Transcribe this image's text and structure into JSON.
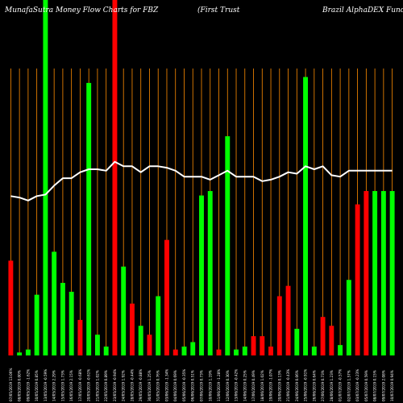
{
  "chart_data": {
    "type": "bar",
    "title_parts": [
      "MunafaSutra  Money Flow  Charts for FBZ",
      "(First Trust",
      "Brazil AlphaDEX  Fund)"
    ],
    "xlabel": "",
    "ylabel": "",
    "grid": "vertical",
    "colors": {
      "background": "#000000",
      "up": "#00ff00",
      "down": "#ff0000",
      "grid": "#ff8c00",
      "line": "#ffffff"
    },
    "categories": [
      "07/05/2019 13.06%",
      "08/05/2019 0.00%",
      "09/05/2019 -1.62%",
      "10/05/2019 0.85%",
      "13/05/2019 -0.59%",
      "14/05/2019 2.29%",
      "15/05/2019 1.73%",
      "16/05/2019 2.15%",
      "17/05/2019 -0.68%",
      "20/05/2019 -0.61%",
      "21/05/2019 1.02%",
      "22/05/2019 0.89%",
      "23/05/2019 -0.94%",
      "24/05/2019 1.92%",
      "28/05/2019 -0.44%",
      "29/05/2019 -0.88%",
      "30/05/2019 1.25%",
      "31/05/2019 0.76%",
      "03/06/2019 -1.34%",
      "04/06/2019 0.69%",
      "05/06/2019 -0.35%",
      "06/06/2019 0.51%",
      "07/06/2019 0.73%",
      "10/06/2019 1.19%",
      "11/06/2019 -1.28%",
      "12/06/2019 0.30%",
      "13/06/2019 -0.42%",
      "14/06/2019 0.25%",
      "17/06/2019 0.49%",
      "18/06/2019 1.02%",
      "19/06/2019 -1.07%",
      "20/06/2019 0.13%",
      "21/06/2019 -0.43%",
      "24/06/2019 0.06%",
      "25/06/2019 -0.91%",
      "26/06/2019 0.64%",
      "27/06/2019 0.73%",
      "28/06/2019 1.23%",
      "01/07/2019 -0.57%",
      "02/07/2019 1.57%",
      "03/07/2019 -0.23%",
      "05/07/2019 0.59%",
      "08/07/2019 0.15%",
      "09/07/2019 2.08%",
      "10/07/2019 0.94%"
    ],
    "bar_colors": [
      "red",
      "green",
      "green",
      "green",
      "green",
      "green",
      "green",
      "green",
      "red",
      "green",
      "green",
      "green",
      "red",
      "green",
      "red",
      "green",
      "red",
      "green",
      "red",
      "red",
      "green",
      "green",
      "green",
      "green",
      "red",
      "green",
      "green",
      "green",
      "red",
      "red",
      "red",
      "red",
      "red",
      "green",
      "green",
      "green",
      "red",
      "red",
      "green",
      "green",
      "red",
      "red",
      "green",
      "green",
      "green"
    ],
    "volume": [
      64,
      2,
      4,
      41,
      240,
      70,
      49,
      43,
      24,
      184,
      14,
      6,
      240,
      60,
      35,
      20,
      14,
      40,
      78,
      4,
      6,
      9,
      108,
      111,
      4,
      148,
      4,
      6,
      13,
      13,
      6,
      40,
      47,
      18,
      188,
      6,
      26,
      20,
      7,
      51,
      102,
      111,
      111,
      111,
      111
    ],
    "money_flow_line": [
      55,
      54,
      52,
      55,
      56,
      62,
      67,
      67,
      71,
      73,
      73,
      72,
      78,
      75,
      75,
      71,
      75,
      75,
      74,
      72,
      68,
      68,
      68,
      66,
      69,
      72,
      68,
      68,
      68,
      65,
      66,
      68,
      71,
      70,
      75,
      73,
      75,
      69,
      68,
      72,
      72,
      72,
      72,
      72,
      72
    ],
    "ylim_volume": [
      0,
      240
    ],
    "ylim_line": [
      0,
      100
    ]
  }
}
